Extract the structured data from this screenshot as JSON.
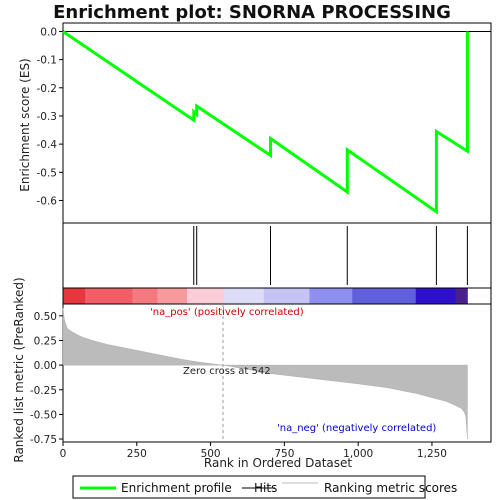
{
  "chart_data": {
    "type": "line",
    "title": "Enrichment plot: SNORNA PROCESSING",
    "x_label": "Rank in Ordered Dataset",
    "y_label_es": "Enrichment score (ES)",
    "y_label_metric": "Ranked list metric (PreRanked)",
    "x_range": [
      0,
      1450
    ],
    "x_ticks": [
      0,
      250,
      500,
      750,
      1000,
      1250
    ],
    "x_tick_labels": [
      "0",
      "250",
      "500",
      "750",
      "1,000",
      "1,250"
    ],
    "es_y_range": [
      -0.68,
      0.03
    ],
    "es_y_ticks": [
      0.0,
      -0.1,
      -0.2,
      -0.3,
      -0.4,
      -0.5,
      -0.6
    ],
    "es_y_tick_labels": [
      "0.0",
      "-0.1",
      "-0.2",
      "-0.3",
      "-0.4",
      "-0.5",
      "-0.6"
    ],
    "metric_y_range": [
      -0.78,
      0.62
    ],
    "metric_y_ticks": [
      0.5,
      0.25,
      0.0,
      -0.25,
      -0.5,
      -0.75
    ],
    "metric_y_tick_labels": [
      "0.50",
      "0.25",
      "0.00",
      "-0.25",
      "-0.50",
      "-0.75"
    ],
    "n_genes": 1370,
    "enrichment_profile": {
      "name": "Enrichment profile",
      "color": "#00ff00",
      "x": [
        0,
        443,
        443,
        453,
        453,
        703,
        703,
        963,
        963,
        1265,
        1265,
        1370,
        1370
      ],
      "y": [
        0.0,
        -0.315,
        -0.285,
        -0.295,
        -0.265,
        -0.44,
        -0.38,
        -0.57,
        -0.42,
        -0.64,
        -0.355,
        -0.425,
        0.0
      ]
    },
    "hits": [
      443,
      453,
      703,
      963,
      1265,
      1370
    ],
    "ranked_metric": {
      "knots_x": [
        0,
        5,
        15,
        30,
        60,
        100,
        150,
        200,
        250,
        300,
        350,
        400,
        450,
        500,
        542,
        600,
        700,
        800,
        900,
        1000,
        1100,
        1200,
        1250,
        1300,
        1330,
        1350,
        1360,
        1365,
        1370
      ],
      "knots_y": [
        0.58,
        0.45,
        0.37,
        0.34,
        0.29,
        0.25,
        0.21,
        0.18,
        0.15,
        0.12,
        0.09,
        0.06,
        0.035,
        0.015,
        0.0,
        -0.03,
        -0.085,
        -0.12,
        -0.155,
        -0.19,
        -0.23,
        -0.29,
        -0.33,
        -0.37,
        -0.41,
        -0.44,
        -0.48,
        -0.52,
        -0.75
      ]
    },
    "zero_cross": 542,
    "annotations": {
      "zero_cross": "Zero cross at 542",
      "pos": "'na_pos' (positively correlated)",
      "neg": "'na_neg' (negatively correlated)"
    },
    "colorbar_segments": [
      {
        "x0": 0,
        "x1": 75,
        "color": "#e8363f"
      },
      {
        "x0": 75,
        "x1": 235,
        "color": "#f25e66"
      },
      {
        "x0": 235,
        "x1": 320,
        "color": "#f47a80"
      },
      {
        "x0": 320,
        "x1": 420,
        "color": "#f79a9d"
      },
      {
        "x0": 420,
        "x1": 545,
        "color": "#fbcdd8"
      },
      {
        "x0": 545,
        "x1": 680,
        "color": "#ddddf7"
      },
      {
        "x0": 680,
        "x1": 835,
        "color": "#c5c5f5"
      },
      {
        "x0": 835,
        "x1": 980,
        "color": "#8f8ff0"
      },
      {
        "x0": 980,
        "x1": 1195,
        "color": "#6060dd"
      },
      {
        "x0": 1195,
        "x1": 1330,
        "color": "#2d10cc"
      },
      {
        "x0": 1330,
        "x1": 1370,
        "color": "#4b208c"
      }
    ],
    "legend": [
      {
        "label": "Enrichment profile",
        "type": "line",
        "color": "#00ff00"
      },
      {
        "label": "Hits",
        "type": "line",
        "color": "#000000"
      },
      {
        "label": "Ranking metric scores",
        "type": "line",
        "color": "#bbbbbb"
      }
    ]
  }
}
